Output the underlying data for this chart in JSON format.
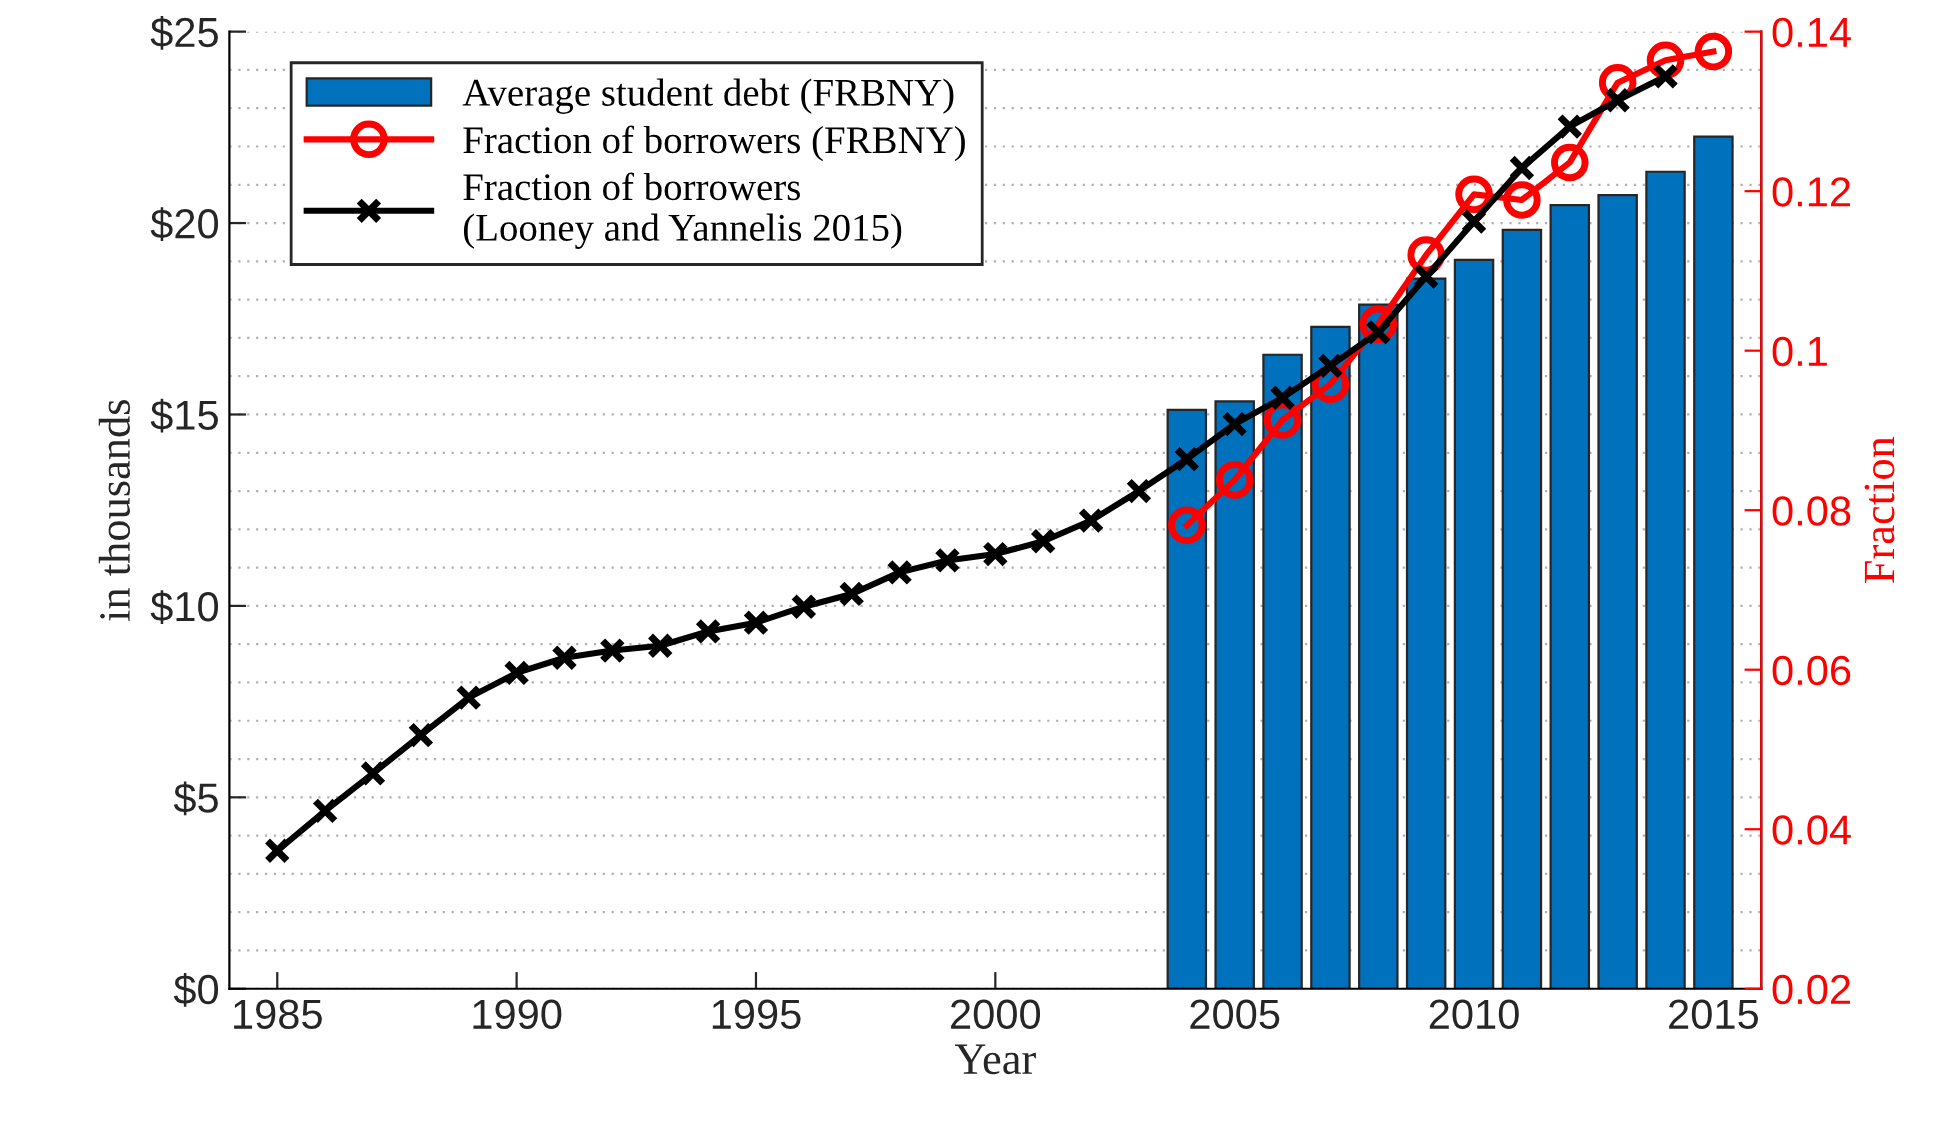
{
  "chart_data": {
    "type": "bar",
    "xlabel": "Year",
    "ylabel": "in thousands",
    "y2label": "Fraction",
    "x": [
      2004,
      2005,
      2006,
      2007,
      2008,
      2009,
      2010,
      2011,
      2012,
      2013,
      2014,
      2015
    ],
    "xlim": [
      1984,
      2016
    ],
    "xticks": [
      1985,
      1990,
      1995,
      2000,
      2005,
      2010,
      2015
    ],
    "ylim": [
      0,
      25
    ],
    "yticks": [
      {
        "value": 0,
        "label": "$0"
      },
      {
        "value": 5,
        "label": "$5"
      },
      {
        "value": 10,
        "label": "$10"
      },
      {
        "value": 15,
        "label": "$15"
      },
      {
        "value": 20,
        "label": "$20"
      },
      {
        "value": 25,
        "label": "$25"
      }
    ],
    "y2lim": [
      0.02,
      0.14
    ],
    "y2ticks": [
      0.02,
      0.04,
      0.06,
      0.08,
      0.1,
      0.12,
      0.14
    ],
    "grid": "y",
    "legend": "top left",
    "series": [
      {
        "name": "Average student debt (FRBNY)",
        "color": "#0072bd",
        "values": [
          15.12,
          15.34,
          16.56,
          17.29,
          17.87,
          18.55,
          19.04,
          19.82,
          20.47,
          20.73,
          21.34,
          22.26
        ]
      },
      {
        "name": "Fraction of borrowers (FRBNY)",
        "type": "line",
        "axis": "y2",
        "color": "#ff0000",
        "marker": "circle",
        "values": [
          0.0781,
          0.0838,
          0.0913,
          0.0958,
          0.1033,
          0.112,
          0.1196,
          0.1189,
          0.1236,
          0.1336,
          0.1364,
          0.1375
        ]
      },
      {
        "name": "Fraction of borrowers\n(Looney and Yannelis 2015)",
        "type": "line",
        "axis": "y2",
        "color": "#000000",
        "marker": "cross",
        "x": [
          1985,
          1986,
          1987,
          1988,
          1989,
          1990,
          1991,
          1992,
          1993,
          1994,
          1995,
          1996,
          1997,
          1998,
          1999,
          2000,
          2001,
          2002,
          2003,
          2004,
          2005,
          2006,
          2007,
          2008,
          2009,
          2010,
          2011,
          2012,
          2013,
          2014
        ],
        "values": [
          0.0373,
          0.0423,
          0.047,
          0.0518,
          0.0565,
          0.0596,
          0.0615,
          0.0624,
          0.063,
          0.0648,
          0.0659,
          0.0679,
          0.0695,
          0.0722,
          0.0737,
          0.0745,
          0.0761,
          0.0787,
          0.0824,
          0.0864,
          0.0908,
          0.0941,
          0.0981,
          0.1023,
          0.1093,
          0.1162,
          0.1229,
          0.1281,
          0.1314,
          0.1344
        ]
      }
    ]
  }
}
